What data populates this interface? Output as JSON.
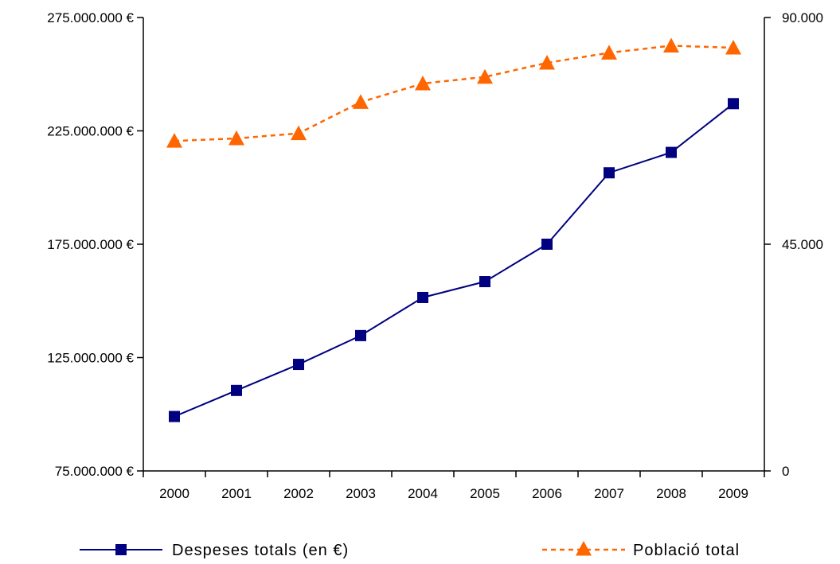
{
  "chart_data": {
    "type": "line",
    "x": [
      "2000",
      "2001",
      "2002",
      "2003",
      "2004",
      "2005",
      "2006",
      "2007",
      "2008",
      "2009"
    ],
    "left_axis": {
      "range": [
        75000000,
        275000000
      ],
      "ticks": [
        75000000,
        125000000,
        175000000,
        225000000,
        275000000
      ],
      "tick_labels": [
        "75.000.000 €",
        "125.000.000 €",
        "175.000.000 €",
        "225.000.000 €",
        "275.000.000 €"
      ]
    },
    "right_axis": {
      "range": [
        0,
        90000
      ],
      "ticks": [
        0,
        45000,
        90000
      ],
      "tick_labels": [
        "0",
        "45.000",
        "90.000"
      ]
    },
    "series": [
      {
        "name": "Despeses totals (en €)",
        "axis": "left",
        "color": "#000080",
        "marker": "square",
        "line_style": "solid",
        "values": [
          99000000,
          110500000,
          122000000,
          134700000,
          151500000,
          158500000,
          175000000,
          206500000,
          215500000,
          237000000
        ]
      },
      {
        "name": "Població total",
        "axis": "right",
        "color": "#FF6600",
        "marker": "triangle",
        "line_style": "dashed",
        "values": [
          65500,
          66000,
          67000,
          73200,
          76900,
          78200,
          81000,
          83000,
          84400,
          84000
        ]
      }
    ],
    "grid": false,
    "legend_position": "bottom"
  }
}
